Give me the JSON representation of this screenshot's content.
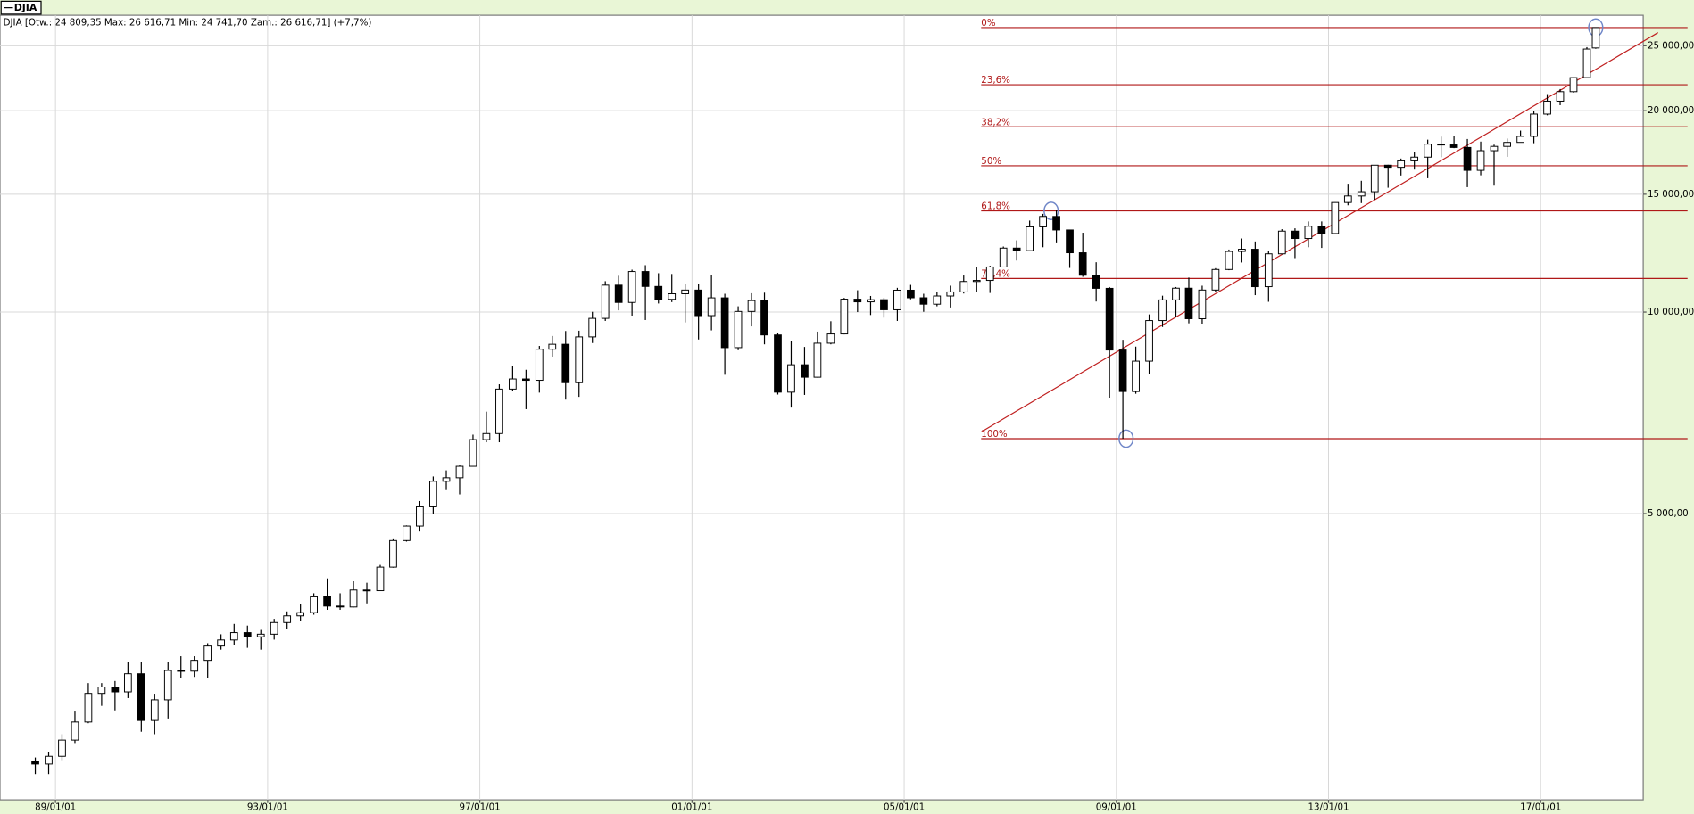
{
  "chart_data": {
    "type": "candlestick",
    "legend": "DJIA",
    "header": "DJIA [Otw.: 24 809,35  Max: 26 616,71  Min: 24 741,70  Zam.: 26 616,71] (+7,7%)",
    "log_scale": true,
    "grid": true,
    "xlim": [
      "1987-12-16",
      "2018-12-08"
    ],
    "ylim": [
      1867,
      27770
    ],
    "xticks": [
      {
        "value": "1989-01-01",
        "label": "89/01/01"
      },
      {
        "value": "1993-01-01",
        "label": "93/01/01"
      },
      {
        "value": "1997-01-01",
        "label": "97/01/01"
      },
      {
        "value": "2001-01-01",
        "label": "01/01/01"
      },
      {
        "value": "2005-01-01",
        "label": "05/01/01"
      },
      {
        "value": "2009-01-01",
        "label": "09/01/01"
      },
      {
        "value": "2013-01-01",
        "label": "13/01/01"
      },
      {
        "value": "2017-01-01",
        "label": "17/01/01"
      }
    ],
    "yticks": [
      {
        "value": 5000,
        "label": "5 000,00"
      },
      {
        "value": 10000,
        "label": "10 000,00"
      },
      {
        "value": 15000,
        "label": "15 000,00"
      },
      {
        "value": 20000,
        "label": "20 000,00"
      },
      {
        "value": 25000,
        "label": "25 000,00"
      }
    ],
    "up_color": "#ffffff",
    "down_color": "#000000",
    "x": [
      "1988-08-15",
      "1988-11-15",
      "1989-02-15",
      "1989-05-15",
      "1989-08-15",
      "1989-11-15",
      "1990-02-15",
      "1990-05-15",
      "1990-08-15",
      "1990-11-15",
      "1991-02-15",
      "1991-05-15",
      "1991-08-15",
      "1991-11-15",
      "1992-02-15",
      "1992-05-15",
      "1992-08-15",
      "1992-11-15",
      "1993-02-15",
      "1993-05-15",
      "1993-08-15",
      "1993-11-15",
      "1994-02-15",
      "1994-05-15",
      "1994-08-15",
      "1994-11-15",
      "1995-02-15",
      "1995-05-15",
      "1995-08-15",
      "1995-11-15",
      "1996-02-15",
      "1996-05-15",
      "1996-08-15",
      "1996-11-15",
      "1997-02-15",
      "1997-05-15",
      "1997-08-15",
      "1997-11-15",
      "1998-02-15",
      "1998-05-15",
      "1998-08-15",
      "1998-11-15",
      "1999-02-15",
      "1999-05-15",
      "1999-08-15",
      "1999-11-15",
      "2000-02-15",
      "2000-05-15",
      "2000-08-15",
      "2000-11-15",
      "2001-02-15",
      "2001-05-15",
      "2001-08-15",
      "2001-11-15",
      "2002-02-15",
      "2002-05-15",
      "2002-08-15",
      "2002-11-15",
      "2003-02-15",
      "2003-05-15",
      "2003-08-15",
      "2003-11-15",
      "2004-02-15",
      "2004-05-15",
      "2004-08-15",
      "2004-11-15",
      "2005-02-15",
      "2005-05-15",
      "2005-08-15",
      "2005-11-15",
      "2006-02-15",
      "2006-05-15",
      "2006-08-15",
      "2006-11-15",
      "2007-02-15",
      "2007-05-15",
      "2007-08-15",
      "2007-11-15",
      "2008-02-15",
      "2008-05-15",
      "2008-08-15",
      "2008-11-15",
      "2009-02-15",
      "2009-05-15",
      "2009-08-15",
      "2009-11-15",
      "2010-02-15",
      "2010-05-15",
      "2010-08-15",
      "2010-11-15",
      "2011-02-15",
      "2011-05-15",
      "2011-08-15",
      "2011-11-15",
      "2012-02-15",
      "2012-05-15",
      "2012-08-15",
      "2012-11-15",
      "2013-02-15",
      "2013-05-15",
      "2013-08-15",
      "2013-11-15",
      "2014-02-15",
      "2014-05-15",
      "2014-08-15",
      "2014-11-15",
      "2015-02-15",
      "2015-05-15",
      "2015-08-15",
      "2015-11-15",
      "2016-02-15",
      "2016-05-15",
      "2016-08-15",
      "2016-11-15",
      "2017-02-15",
      "2017-05-15",
      "2017-08-15",
      "2017-11-15",
      "2018-01-15"
    ],
    "open": [
      2130,
      2112,
      2169,
      2293,
      2440,
      2693,
      2753,
      2707,
      2881,
      2453,
      2634,
      2914,
      2907,
      3017,
      3169,
      3236,
      3319,
      3272,
      3301,
      3436,
      3516,
      3555,
      3754,
      3636,
      3625,
      3843,
      3834,
      4158,
      4556,
      4789,
      5117,
      5587,
      5655,
      5882,
      6448,
      6584,
      7673,
      7945,
      7908,
      8800,
      8952,
      7843,
      9181,
      9786,
      10971,
      10337,
      11497,
      10922,
      10448,
      10651,
      10787,
      9879,
      10502,
      8848,
      10022,
      10404,
      9243,
      7592,
      8342,
      7992,
      8985,
      9275,
      10454,
      10358,
      10435,
      10080,
      10783,
      10504,
      10275,
      10569,
      10718,
      11109,
      11150,
      11679,
      12463,
      12354,
      13409,
      13896,
      13265,
      12263,
      11350,
      10851,
      8776,
      7609,
      8447,
      9712,
      10428,
      10857,
      9774,
      10788,
      11578,
      12320,
      12414,
      10913,
      12218,
      13212,
      12880,
      13437,
      13104,
      14579,
      14910,
      15130,
      16577,
      16458,
      16827,
      17043,
      17823,
      17776,
      17620,
      16285,
      17425,
      17685,
      17930,
      18308,
      19763,
      20663,
      21350,
      22405,
      24809.35
    ],
    "high": [
      2160,
      2200,
      2340,
      2530,
      2790,
      2790,
      2810,
      3000,
      3000,
      2690,
      3000,
      3060,
      3060,
      3200,
      3300,
      3420,
      3400,
      3350,
      3480,
      3570,
      3660,
      3800,
      4000,
      3800,
      3960,
      3940,
      4190,
      4590,
      4800,
      5220,
      5680,
      5800,
      5900,
      6560,
      7100,
      7800,
      8300,
      8200,
      8900,
      9210,
      9370,
      9380,
      10010,
      11120,
      11330,
      11570,
      11750,
      11430,
      11400,
      11000,
      11000,
      11350,
      10650,
      10200,
      10670,
      10690,
      9300,
      9050,
      8870,
      9350,
      9690,
      10500,
      10780,
      10570,
      10500,
      10870,
      10980,
      10650,
      10720,
      10950,
      11340,
      11670,
      11730,
      12530,
      12800,
      13700,
      14020,
      14200,
      13280,
      13140,
      11870,
      10900,
      9090,
      8880,
      9920,
      10580,
      10900,
      11260,
      10950,
      11630,
      12400,
      12880,
      12750,
      12330,
      13300,
      13340,
      13660,
      13660,
      14590,
      15550,
      15710,
      16590,
      16600,
      16960,
      17350,
      18100,
      18290,
      18350,
      18140,
      17980,
      17790,
      18170,
      18670,
      19990,
      21170,
      21540,
      22420,
      24880,
      26616.71
    ],
    "low": [
      2040,
      2040,
      2140,
      2270,
      2430,
      2580,
      2540,
      2650,
      2360,
      2340,
      2470,
      2840,
      2850,
      2840,
      3130,
      3180,
      3150,
      3130,
      3240,
      3360,
      3450,
      3530,
      3590,
      3590,
      3620,
      3670,
      3830,
      4150,
      4540,
      4700,
      5000,
      5420,
      5340,
      5880,
      6390,
      6390,
      7620,
      7160,
      7580,
      8580,
      7400,
      7470,
      8990,
      9700,
      10060,
      9880,
      9730,
      10300,
      10350,
      9650,
      9100,
      9390,
      8060,
      8770,
      9520,
      8950,
      7530,
      7200,
      7520,
      7980,
      8950,
      9260,
      10000,
      9900,
      9810,
      9700,
      10450,
      10010,
      10200,
      10160,
      10660,
      10700,
      10680,
      11660,
      11940,
      12350,
      12500,
      12710,
      11640,
      11290,
      10370,
      7450,
      6470,
      7550,
      8080,
      9500,
      9830,
      9620,
      9610,
      10700,
      11550,
      11860,
      10600,
      10360,
      12200,
      12040,
      12500,
      12470,
      13100,
      14440,
      14550,
      14720,
      15340,
      16000,
      16330,
      15850,
      17040,
      17580,
      15370,
      16010,
      15450,
      17060,
      17920,
      17880,
      19680,
      20380,
      21280,
      22400,
      24741.7
    ],
    "close": [
      2112,
      2169,
      2293,
      2440,
      2693,
      2753,
      2707,
      2881,
      2453,
      2634,
      2914,
      2907,
      3017,
      3169,
      3236,
      3319,
      3272,
      3301,
      3436,
      3516,
      3555,
      3754,
      3636,
      3625,
      3843,
      3834,
      4158,
      4556,
      4789,
      5117,
      5587,
      5655,
      5882,
      6448,
      6584,
      7673,
      7945,
      7908,
      8800,
      8952,
      7843,
      9181,
      9786,
      10971,
      10337,
      11497,
      10922,
      10448,
      10651,
      10787,
      9879,
      10502,
      8848,
      10022,
      10404,
      9243,
      7592,
      8342,
      7992,
      8985,
      9275,
      10454,
      10358,
      10435,
      10080,
      10783,
      10504,
      10275,
      10569,
      10718,
      11109,
      11150,
      11679,
      12463,
      12354,
      13409,
      13896,
      13265,
      12263,
      11350,
      10851,
      8776,
      7609,
      8447,
      9712,
      10428,
      10857,
      9774,
      10788,
      11578,
      12320,
      12414,
      10913,
      12218,
      13212,
      12880,
      13437,
      13104,
      14579,
      14910,
      15130,
      16577,
      16458,
      16827,
      17043,
      17823,
      17776,
      17620,
      16285,
      17425,
      17685,
      17930,
      18308,
      19763,
      20663,
      21350,
      22405,
      24719,
      26616.71
    ],
    "fibonacci": {
      "start": "2006-06-15",
      "color": "#b01818",
      "levels": [
        {
          "label": "0%",
          "value": 26617
        },
        {
          "label": "23,6%",
          "value": 21862
        },
        {
          "label": "38,2%",
          "value": 18920
        },
        {
          "label": "50%",
          "value": 16543
        },
        {
          "label": "61,8%",
          "value": 14166
        },
        {
          "label": "76,4%",
          "value": 11225
        },
        {
          "label": "100%",
          "value": 6470
        }
      ]
    },
    "trendline": {
      "color": "#c02020",
      "x": [
        "2006-06-15",
        "2019-03-20"
      ],
      "y": [
        6620,
        26160
      ]
    },
    "markers": {
      "color": "#6f86c8",
      "x": [
        "2007-10-10",
        "2009-03-09",
        "2018-01-15"
      ],
      "y": [
        14164,
        6470,
        26617
      ]
    }
  }
}
